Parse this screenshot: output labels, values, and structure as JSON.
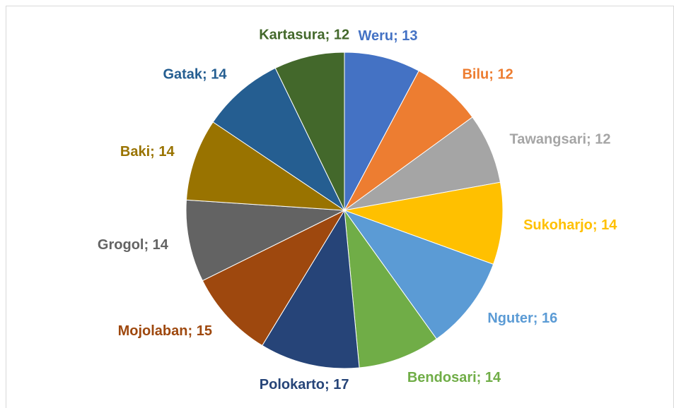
{
  "chart_data": {
    "type": "pie",
    "categories": [
      "Weru",
      "Bilu",
      "Tawangsari",
      "Sukoharjo",
      "Nguter",
      "Bendosari",
      "Polokarto",
      "Mojolaban",
      "Grogol",
      "Baki",
      "Gatak",
      "Kartasura"
    ],
    "values": [
      13,
      12,
      12,
      14,
      16,
      14,
      17,
      15,
      14,
      14,
      14,
      12
    ],
    "value_labels": [
      "Weru; 13",
      "Bilu; 12",
      "Tawangsari; 12",
      "Sukoharjo; 14",
      "Nguter; 16",
      "Bendosari; 14",
      "Polokarto; 17",
      "Mojolaban; 15",
      "Grogol; 14",
      "Baki; 14",
      "Gatak; 14",
      "Kartasura; 12"
    ],
    "colors": [
      "#4472c4",
      "#ed7d31",
      "#a5a5a5",
      "#ffc000",
      "#5b9bd5",
      "#70ad47",
      "#264478",
      "#9e480e",
      "#636363",
      "#997300",
      "#255e91",
      "#43682b"
    ]
  }
}
